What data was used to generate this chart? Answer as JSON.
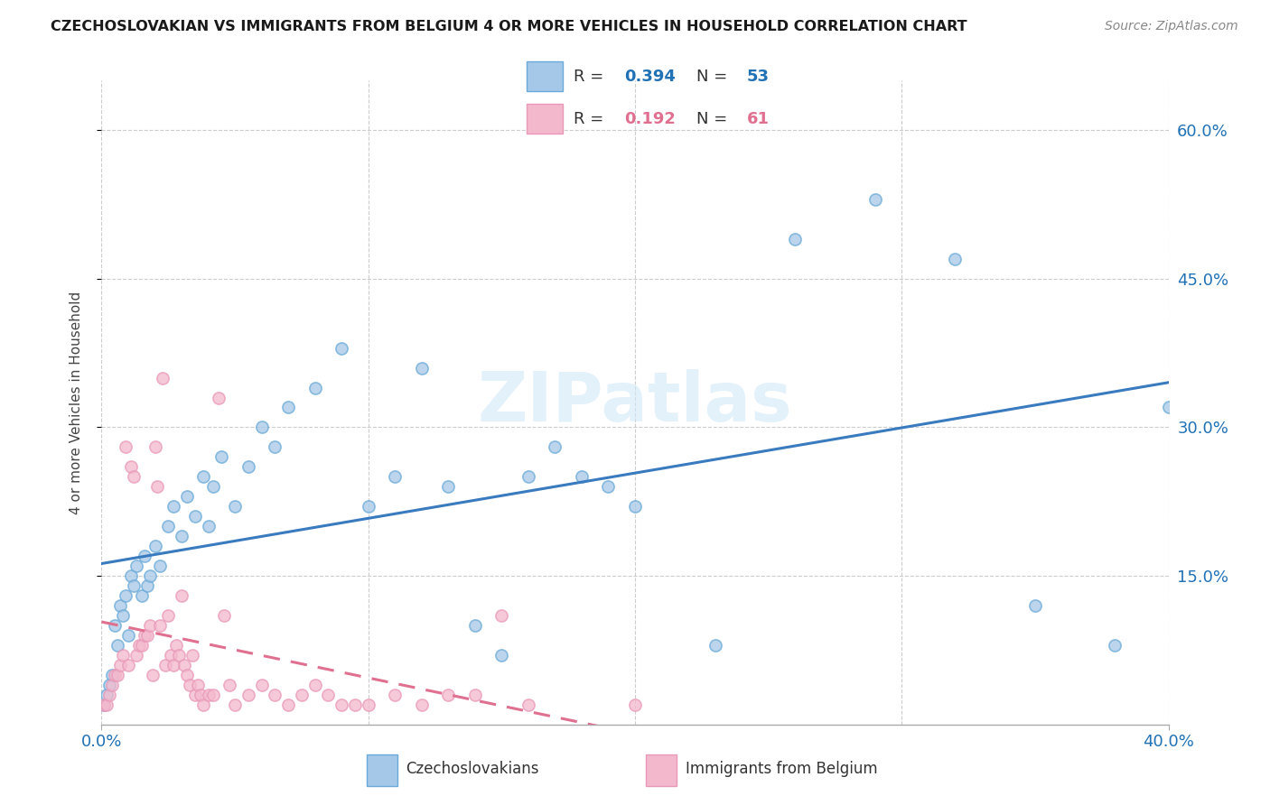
{
  "title": "CZECHOSLOVAKIAN VS IMMIGRANTS FROM BELGIUM 4 OR MORE VEHICLES IN HOUSEHOLD CORRELATION CHART",
  "source": "Source: ZipAtlas.com",
  "ylabel": "4 or more Vehicles in Household",
  "right_ytick_vals": [
    0.15,
    0.3,
    0.45,
    0.6
  ],
  "right_ytick_labels": [
    "15.0%",
    "30.0%",
    "45.0%",
    "60.0%"
  ],
  "xlim": [
    0.0,
    0.4
  ],
  "ylim": [
    0.0,
    0.65
  ],
  "legend_blue_R": "0.394",
  "legend_blue_N": "53",
  "legend_pink_R": "0.192",
  "legend_pink_N": "61",
  "blue_scatter_color": "#a6c8e8",
  "pink_scatter_color": "#f4b8cc",
  "blue_line_color": "#3a7bbf",
  "pink_line_color": "#e07090",
  "blue_edge_color": "#6aaad8",
  "pink_edge_color": "#e899b8",
  "watermark": "ZIPatlas",
  "watermark_color": "#d0e8f8",
  "blue_points_x": [
    0.001,
    0.002,
    0.003,
    0.004,
    0.005,
    0.006,
    0.007,
    0.008,
    0.009,
    0.01,
    0.011,
    0.012,
    0.013,
    0.015,
    0.016,
    0.017,
    0.018,
    0.02,
    0.022,
    0.025,
    0.027,
    0.03,
    0.032,
    0.035,
    0.038,
    0.04,
    0.042,
    0.045,
    0.05,
    0.055,
    0.06,
    0.065,
    0.07,
    0.08,
    0.09,
    0.1,
    0.11,
    0.12,
    0.13,
    0.14,
    0.15,
    0.16,
    0.17,
    0.18,
    0.19,
    0.2,
    0.23,
    0.26,
    0.29,
    0.32,
    0.35,
    0.38,
    0.4
  ],
  "blue_points_y": [
    0.02,
    0.03,
    0.04,
    0.05,
    0.1,
    0.08,
    0.12,
    0.11,
    0.13,
    0.09,
    0.15,
    0.14,
    0.16,
    0.13,
    0.17,
    0.14,
    0.15,
    0.18,
    0.16,
    0.2,
    0.22,
    0.19,
    0.23,
    0.21,
    0.25,
    0.2,
    0.24,
    0.27,
    0.22,
    0.26,
    0.3,
    0.28,
    0.32,
    0.34,
    0.38,
    0.22,
    0.25,
    0.36,
    0.24,
    0.1,
    0.07,
    0.25,
    0.28,
    0.25,
    0.24,
    0.22,
    0.08,
    0.49,
    0.53,
    0.47,
    0.12,
    0.08,
    0.32
  ],
  "pink_points_x": [
    0.001,
    0.002,
    0.003,
    0.004,
    0.005,
    0.006,
    0.007,
    0.008,
    0.009,
    0.01,
    0.011,
    0.012,
    0.013,
    0.014,
    0.015,
    0.016,
    0.017,
    0.018,
    0.019,
    0.02,
    0.021,
    0.022,
    0.023,
    0.024,
    0.025,
    0.026,
    0.027,
    0.028,
    0.029,
    0.03,
    0.031,
    0.032,
    0.033,
    0.034,
    0.035,
    0.036,
    0.037,
    0.038,
    0.04,
    0.042,
    0.044,
    0.046,
    0.048,
    0.05,
    0.055,
    0.06,
    0.065,
    0.07,
    0.075,
    0.08,
    0.085,
    0.09,
    0.095,
    0.1,
    0.11,
    0.12,
    0.13,
    0.14,
    0.15,
    0.16,
    0.2
  ],
  "pink_points_y": [
    0.02,
    0.02,
    0.03,
    0.04,
    0.05,
    0.05,
    0.06,
    0.07,
    0.28,
    0.06,
    0.26,
    0.25,
    0.07,
    0.08,
    0.08,
    0.09,
    0.09,
    0.1,
    0.05,
    0.28,
    0.24,
    0.1,
    0.35,
    0.06,
    0.11,
    0.07,
    0.06,
    0.08,
    0.07,
    0.13,
    0.06,
    0.05,
    0.04,
    0.07,
    0.03,
    0.04,
    0.03,
    0.02,
    0.03,
    0.03,
    0.33,
    0.11,
    0.04,
    0.02,
    0.03,
    0.04,
    0.03,
    0.02,
    0.03,
    0.04,
    0.03,
    0.02,
    0.02,
    0.02,
    0.03,
    0.02,
    0.03,
    0.03,
    0.11,
    0.02,
    0.02
  ]
}
